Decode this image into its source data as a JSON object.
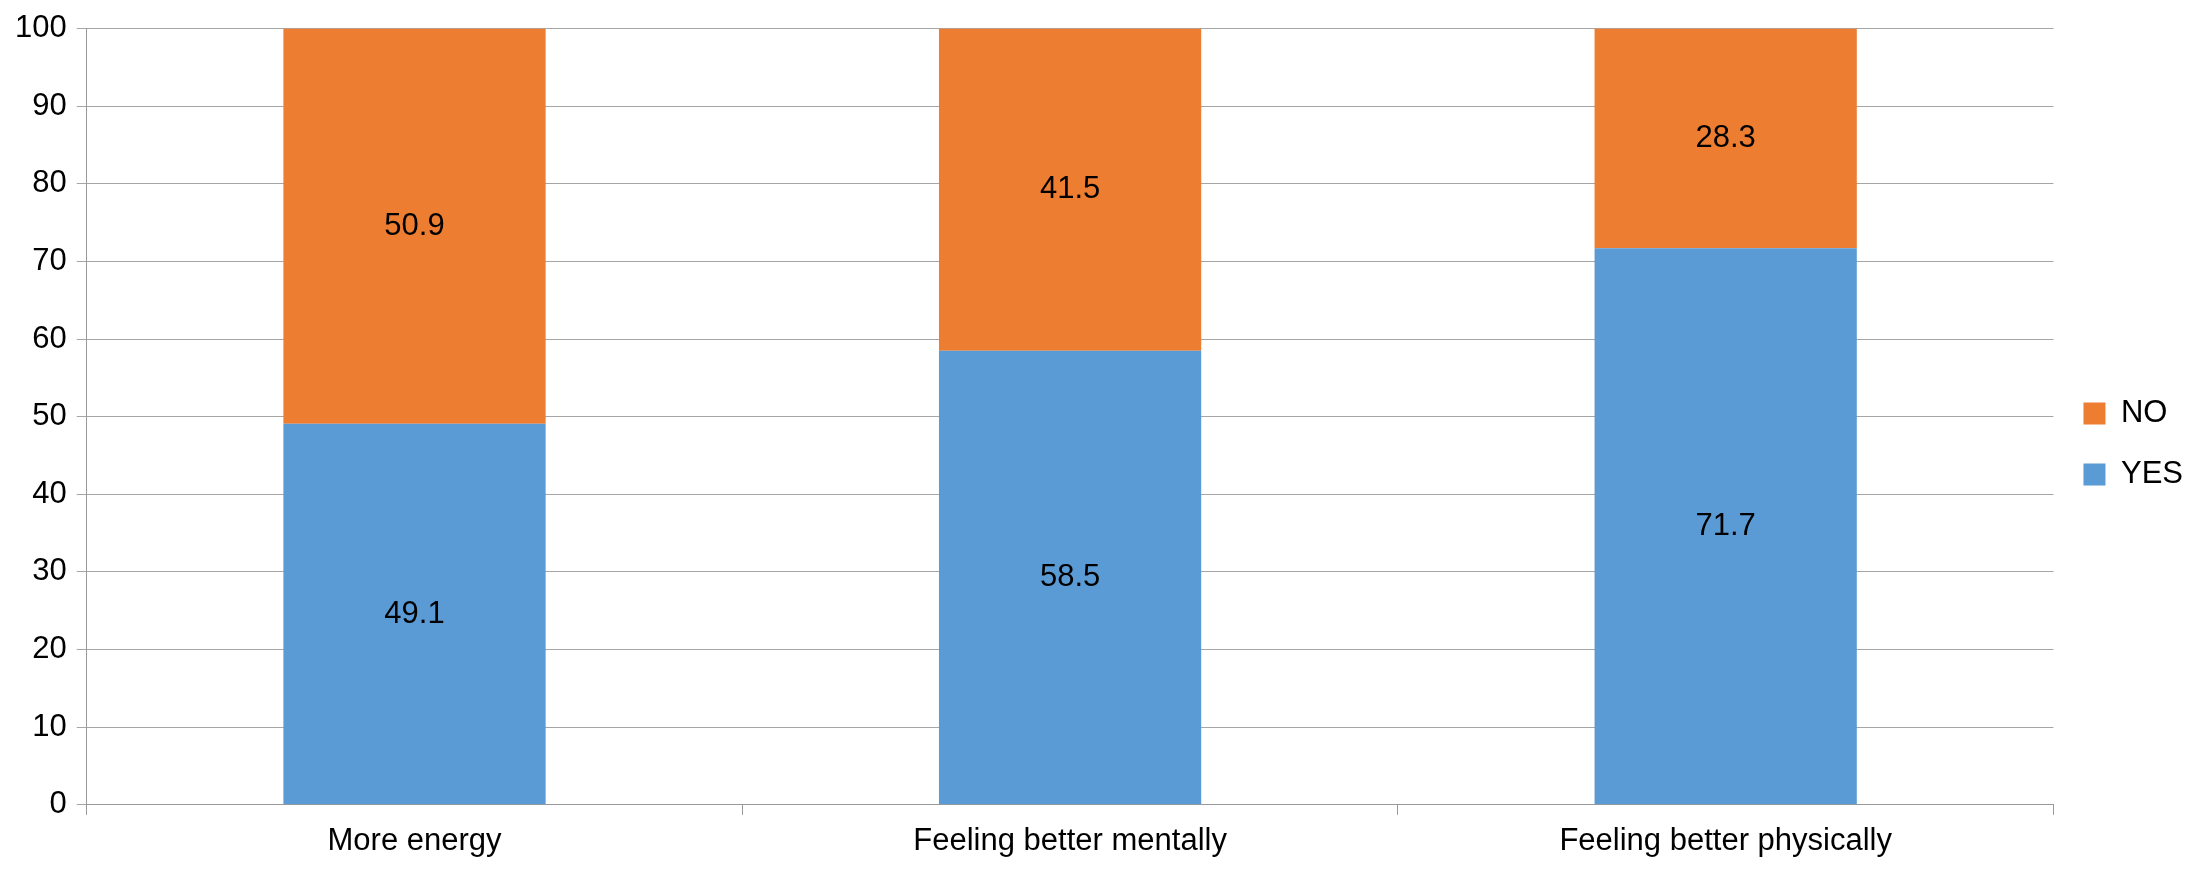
{
  "chart_data": {
    "type": "bar",
    "stacked": true,
    "categories": [
      "More energy",
      "Feeling better mentally",
      "Feeling better physically"
    ],
    "series": [
      {
        "name": "YES",
        "color": "#5b9bd5",
        "values": [
          49.1,
          58.5,
          71.7
        ]
      },
      {
        "name": "NO",
        "color": "#ed7d31",
        "values": [
          50.9,
          41.5,
          28.3
        ]
      }
    ],
    "ylim": [
      0,
      100
    ],
    "yticks": [
      0,
      10,
      20,
      30,
      40,
      50,
      60,
      70,
      80,
      90,
      100
    ],
    "grid": "y",
    "legend": "right",
    "data_labels": true
  }
}
